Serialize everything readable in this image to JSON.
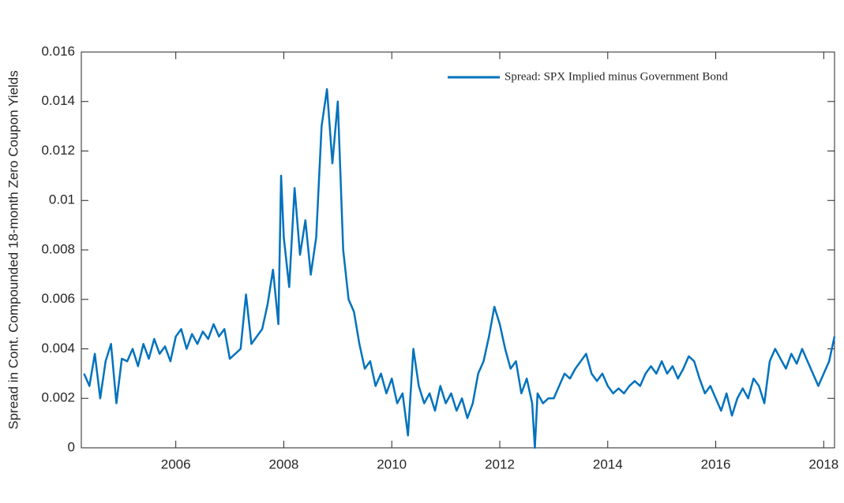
{
  "chart_data": {
    "type": "line",
    "ylabel": "Spread in Cont. Compounded 18-month Zero Coupon Yields",
    "x": [
      2004.3,
      2004.4,
      2004.5,
      2004.6,
      2004.7,
      2004.8,
      2004.9,
      2005.0,
      2005.1,
      2005.2,
      2005.3,
      2005.4,
      2005.5,
      2005.6,
      2005.7,
      2005.8,
      2005.9,
      2006.0,
      2006.1,
      2006.2,
      2006.3,
      2006.4,
      2006.5,
      2006.6,
      2006.7,
      2006.8,
      2006.9,
      2007.0,
      2007.1,
      2007.2,
      2007.3,
      2007.4,
      2007.5,
      2007.6,
      2007.7,
      2007.8,
      2007.9,
      2007.95,
      2008.0,
      2008.1,
      2008.2,
      2008.3,
      2008.4,
      2008.5,
      2008.6,
      2008.7,
      2008.8,
      2008.9,
      2009.0,
      2009.1,
      2009.2,
      2009.3,
      2009.4,
      2009.5,
      2009.6,
      2009.7,
      2009.8,
      2009.9,
      2010.0,
      2010.1,
      2010.2,
      2010.3,
      2010.4,
      2010.5,
      2010.6,
      2010.7,
      2010.8,
      2010.9,
      2011.0,
      2011.1,
      2011.2,
      2011.3,
      2011.4,
      2011.5,
      2011.6,
      2011.7,
      2011.8,
      2011.9,
      2012.0,
      2012.1,
      2012.2,
      2012.3,
      2012.4,
      2012.5,
      2012.6,
      2012.65,
      2012.7,
      2012.8,
      2012.9,
      2013.0,
      2013.1,
      2013.2,
      2013.3,
      2013.4,
      2013.5,
      2013.6,
      2013.7,
      2013.8,
      2013.9,
      2014.0,
      2014.1,
      2014.2,
      2014.3,
      2014.4,
      2014.5,
      2014.6,
      2014.7,
      2014.8,
      2014.9,
      2015.0,
      2015.1,
      2015.2,
      2015.3,
      2015.4,
      2015.5,
      2015.6,
      2015.7,
      2015.8,
      2015.9,
      2016.0,
      2016.1,
      2016.2,
      2016.3,
      2016.4,
      2016.5,
      2016.6,
      2016.7,
      2016.8,
      2016.9,
      2017.0,
      2017.1,
      2017.2,
      2017.3,
      2017.4,
      2017.5,
      2017.6,
      2017.7,
      2017.8,
      2017.9,
      2018.0,
      2018.1,
      2018.2
    ],
    "series": [
      {
        "name": "Spread: SPX Implied minus Government Bond",
        "color": "#0072bd",
        "values": [
          0.003,
          0.0025,
          0.0038,
          0.002,
          0.0035,
          0.0042,
          0.0018,
          0.0036,
          0.0035,
          0.004,
          0.0033,
          0.0042,
          0.0036,
          0.0044,
          0.0038,
          0.0041,
          0.0035,
          0.0045,
          0.0048,
          0.004,
          0.0046,
          0.0042,
          0.0047,
          0.0044,
          0.005,
          0.0045,
          0.0048,
          0.0036,
          0.0038,
          0.004,
          0.0062,
          0.0042,
          0.0045,
          0.0048,
          0.0058,
          0.0072,
          0.005,
          0.011,
          0.0085,
          0.0065,
          0.0105,
          0.0078,
          0.0092,
          0.007,
          0.0085,
          0.013,
          0.0145,
          0.0115,
          0.014,
          0.008,
          0.006,
          0.0055,
          0.0042,
          0.0032,
          0.0035,
          0.0025,
          0.003,
          0.0022,
          0.0028,
          0.0018,
          0.0022,
          0.0005,
          0.004,
          0.0025,
          0.0018,
          0.0022,
          0.0015,
          0.0025,
          0.0018,
          0.0022,
          0.0015,
          0.002,
          0.0012,
          0.0018,
          0.003,
          0.0035,
          0.0045,
          0.0057,
          0.005,
          0.004,
          0.0032,
          0.0035,
          0.0022,
          0.0028,
          0.0018,
          0.0,
          0.0022,
          0.0018,
          0.002,
          0.002,
          0.0025,
          0.003,
          0.0028,
          0.0032,
          0.0035,
          0.0038,
          0.003,
          0.0027,
          0.003,
          0.0025,
          0.0022,
          0.0024,
          0.0022,
          0.0025,
          0.0027,
          0.0025,
          0.003,
          0.0033,
          0.003,
          0.0035,
          0.003,
          0.0033,
          0.0028,
          0.0032,
          0.0037,
          0.0035,
          0.0028,
          0.0022,
          0.0025,
          0.002,
          0.0015,
          0.0022,
          0.0013,
          0.002,
          0.0024,
          0.002,
          0.0028,
          0.0025,
          0.0018,
          0.0035,
          0.004,
          0.0036,
          0.0032,
          0.0038,
          0.0034,
          0.004,
          0.0035,
          0.003,
          0.0025,
          0.003,
          0.0035,
          0.0045
        ]
      }
    ],
    "xlim": [
      2004.25,
      2018.2
    ],
    "xticks": [
      2006,
      2008,
      2010,
      2012,
      2014,
      2016,
      2018
    ],
    "ylim": [
      0,
      0.016
    ],
    "yticks": [
      0,
      0.002,
      0.004,
      0.006,
      0.008,
      0.01,
      0.012,
      0.014,
      0.016
    ],
    "legend": "upper right",
    "grid": false
  }
}
